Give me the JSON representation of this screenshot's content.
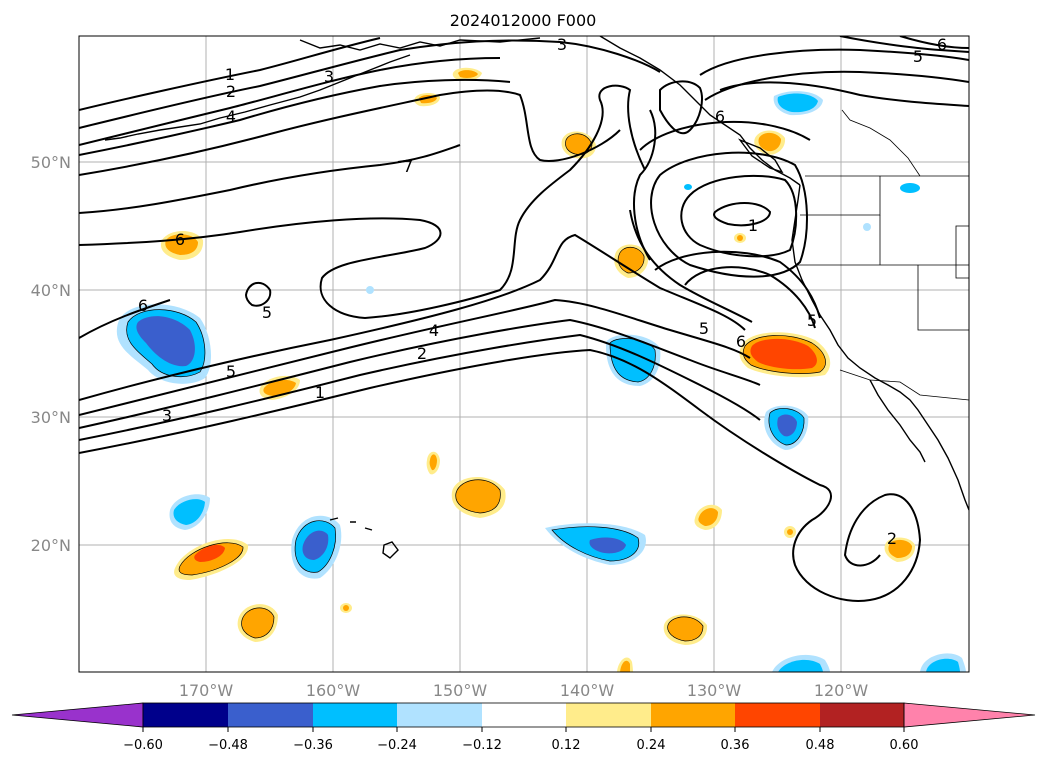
{
  "title": "2024012000 F000",
  "map": {
    "lon_labels": [
      "170°W",
      "160°W",
      "150°W",
      "140°W",
      "130°W",
      "120°W"
    ],
    "lat_labels": [
      "50°N",
      "40°N",
      "30°N",
      "20°N"
    ],
    "contour_labels": [
      {
        "id": "c1a",
        "text": "1"
      },
      {
        "id": "c2a",
        "text": "2"
      },
      {
        "id": "c3a",
        "text": "3"
      },
      {
        "id": "c4a",
        "text": "4"
      },
      {
        "id": "c3b",
        "text": "3"
      },
      {
        "id": "c5a",
        "text": "5"
      },
      {
        "id": "c6a",
        "text": "6"
      },
      {
        "id": "c7a",
        "text": "7"
      },
      {
        "id": "c6b",
        "text": "6"
      },
      {
        "id": "c6c",
        "text": "6"
      },
      {
        "id": "c5b",
        "text": "5"
      },
      {
        "id": "c5c",
        "text": "5"
      },
      {
        "id": "c4b",
        "text": "4"
      },
      {
        "id": "c2b",
        "text": "2"
      },
      {
        "id": "c1b",
        "text": "1"
      },
      {
        "id": "c3c",
        "text": "3"
      },
      {
        "id": "c5d",
        "text": "5"
      },
      {
        "id": "c6d",
        "text": "6"
      },
      {
        "id": "c1c",
        "text": "1"
      },
      {
        "id": "c2c",
        "text": "2"
      },
      {
        "id": "c6e",
        "text": "6"
      },
      {
        "id": "c5e",
        "text": "5"
      }
    ]
  },
  "colorbar": {
    "colors": [
      "#9932cc",
      "#00008b",
      "#3a5fcd",
      "#00bfff",
      "#b0e2ff",
      "#ffffff",
      "#ffec8b",
      "#ffa500",
      "#ff4500",
      "#b22222",
      "#ff82ab"
    ],
    "tick_labels": [
      "−0.60",
      "−0.48",
      "−0.36",
      "−0.24",
      "−0.12",
      "0.12",
      "0.24",
      "0.36",
      "0.48",
      "0.60"
    ]
  }
}
